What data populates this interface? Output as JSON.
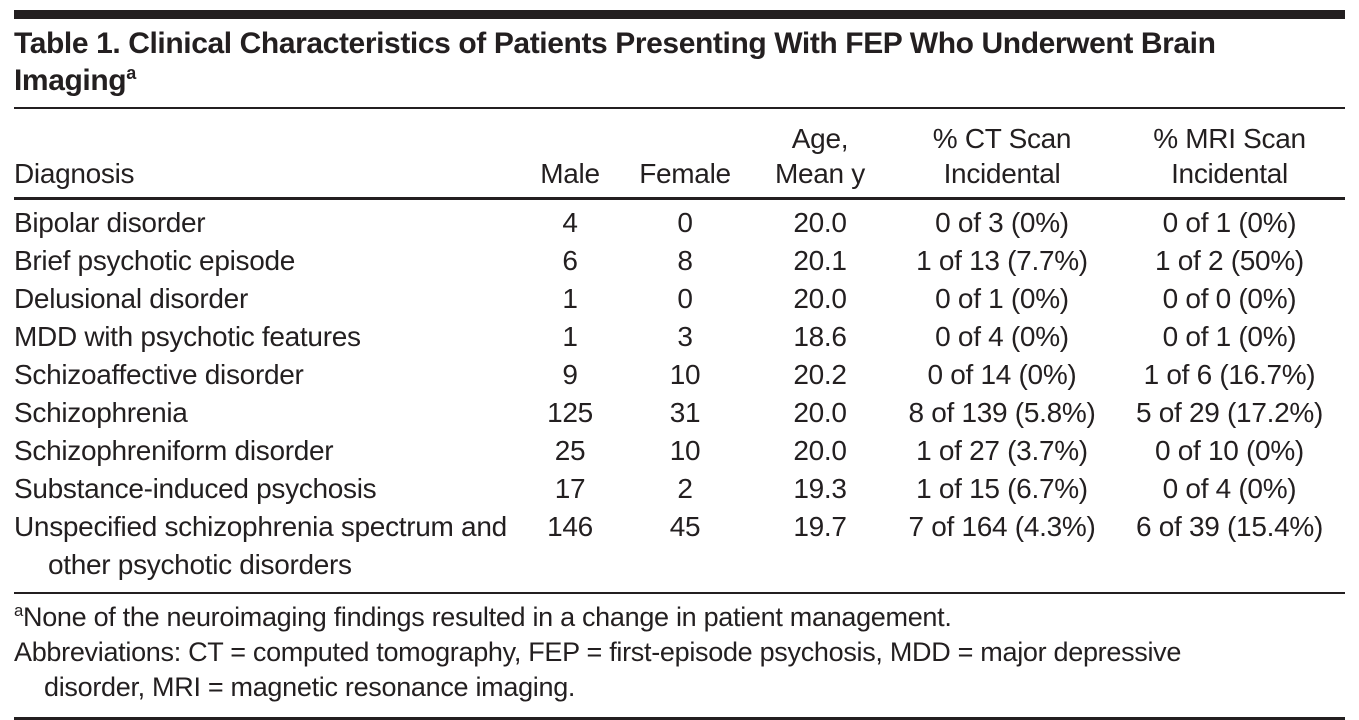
{
  "title": {
    "text": "Table 1. Clinical Characteristics of Patients Presenting With FEP Who Underwent Brain Imaging",
    "superscript": "a"
  },
  "table": {
    "columns": [
      {
        "label": "Diagnosis"
      },
      {
        "label": "Male"
      },
      {
        "label": "Female"
      },
      {
        "label": "Age,\nMean y"
      },
      {
        "label": "% CT Scan\nIncidental"
      },
      {
        "label": "% MRI Scan\nIncidental"
      }
    ],
    "rows": [
      {
        "diagnosis": "Bipolar disorder",
        "male": "4",
        "female": "0",
        "age_mean_y": "20.0",
        "ct_scan_incidental": "0 of 3 (0%)",
        "mri_scan_incidental": "0 of 1 (0%)"
      },
      {
        "diagnosis": "Brief psychotic episode",
        "male": "6",
        "female": "8",
        "age_mean_y": "20.1",
        "ct_scan_incidental": "1 of 13 (7.7%)",
        "mri_scan_incidental": "1 of 2 (50%)"
      },
      {
        "diagnosis": "Delusional disorder",
        "male": "1",
        "female": "0",
        "age_mean_y": "20.0",
        "ct_scan_incidental": "0 of 1 (0%)",
        "mri_scan_incidental": "0 of 0 (0%)"
      },
      {
        "diagnosis": "MDD with psychotic features",
        "male": "1",
        "female": "3",
        "age_mean_y": "18.6",
        "ct_scan_incidental": "0 of 4 (0%)",
        "mri_scan_incidental": "0 of 1 (0%)"
      },
      {
        "diagnosis": "Schizoaffective disorder",
        "male": "9",
        "female": "10",
        "age_mean_y": "20.2",
        "ct_scan_incidental": "0 of 14 (0%)",
        "mri_scan_incidental": "1 of 6 (16.7%)"
      },
      {
        "diagnosis": "Schizophrenia",
        "male": "125",
        "female": "31",
        "age_mean_y": "20.0",
        "ct_scan_incidental": "8 of 139 (5.8%)",
        "mri_scan_incidental": "5 of 29 (17.2%)"
      },
      {
        "diagnosis": "Schizophreniform disorder",
        "male": "25",
        "female": "10",
        "age_mean_y": "20.0",
        "ct_scan_incidental": "1 of 27 (3.7%)",
        "mri_scan_incidental": "0 of 10 (0%)"
      },
      {
        "diagnosis": "Substance-induced psychosis",
        "male": "17",
        "female": "2",
        "age_mean_y": "19.3",
        "ct_scan_incidental": "1 of 15 (6.7%)",
        "mri_scan_incidental": "0 of 4 (0%)"
      },
      {
        "diagnosis": "Unspecified schizophrenia spectrum and other psychotic disorders",
        "male": "146",
        "female": "45",
        "age_mean_y": "19.7",
        "ct_scan_incidental": "7 of 164 (4.3%)",
        "mri_scan_incidental": "6 of 39 (15.4%)"
      }
    ]
  },
  "footnotes": [
    {
      "marker": "a",
      "text": "None of the neuroimaging findings resulted in a change in patient management."
    },
    {
      "text": "Abbreviations: CT = computed tomography, FEP = first-episode psychosis, MDD = major depressive disorder, MRI = magnetic resonance imaging."
    }
  ],
  "colors": {
    "text": "#231f20",
    "rule": "#231f20",
    "top_bar": "#231f20",
    "background": "#ffffff"
  }
}
